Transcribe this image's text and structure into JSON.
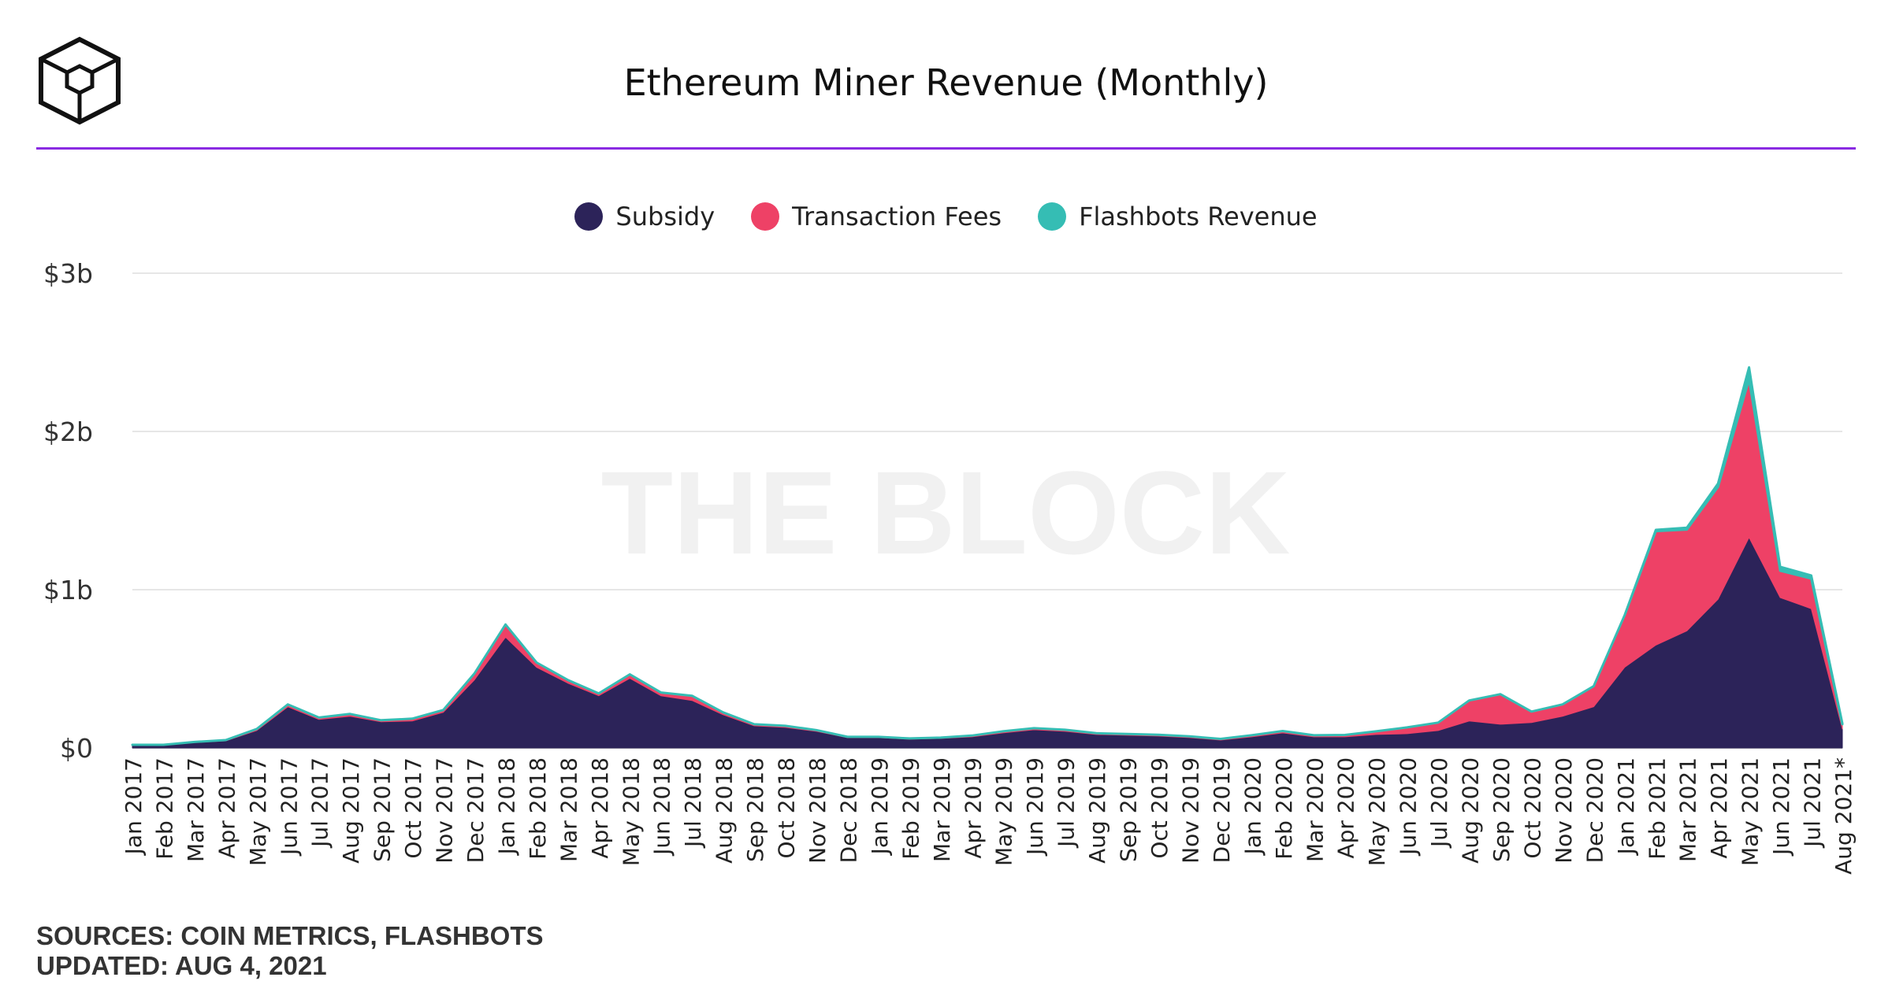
{
  "header": {
    "title": "Ethereum Miner Revenue (Monthly)"
  },
  "watermark": "THE BLOCK",
  "footer": {
    "sources": "SOURCES: COIN METRICS, FLASHBOTS",
    "updated": "UPDATED: AUG 4, 2021"
  },
  "colors": {
    "subsidy": "#2c2359",
    "fees": "#ee4166",
    "flashbots": "#35bdb4",
    "accent_rule": "#8a2be2"
  },
  "chart_data": {
    "type": "area",
    "stacked": true,
    "title": "Ethereum Miner Revenue (Monthly)",
    "xlabel": "",
    "ylabel": "",
    "ylim": [
      0,
      3000000000
    ],
    "yticks": [
      {
        "value": 0,
        "label": "$0"
      },
      {
        "value": 1000000000,
        "label": "$1b"
      },
      {
        "value": 2000000000,
        "label": "$2b"
      },
      {
        "value": 3000000000,
        "label": "$3b"
      }
    ],
    "grid": true,
    "legend_position": "top-center",
    "categories": [
      "Jan 2017",
      "Feb 2017",
      "Mar 2017",
      "Apr 2017",
      "May 2017",
      "Jun 2017",
      "Jul 2017",
      "Aug 2017",
      "Sep 2017",
      "Oct 2017",
      "Nov 2017",
      "Dec 2017",
      "Jan 2018",
      "Feb 2018",
      "Mar 2018",
      "Apr 2018",
      "May 2018",
      "Jun 2018",
      "Jul 2018",
      "Aug 2018",
      "Sep 2018",
      "Oct 2018",
      "Nov 2018",
      "Dec 2018",
      "Jan 2019",
      "Feb 2019",
      "Mar 2019",
      "Apr 2019",
      "May 2019",
      "Jun 2019",
      "Jul 2019",
      "Aug 2019",
      "Sep 2019",
      "Oct 2019",
      "Nov 2019",
      "Dec 2019",
      "Jan 2020",
      "Feb 2020",
      "Mar 2020",
      "Apr 2020",
      "May 2020",
      "Jun 2020",
      "Jul 2020",
      "Aug 2020",
      "Sep 2020",
      "Oct 2020",
      "Nov 2020",
      "Dec 2020",
      "Jan 2021",
      "Feb 2021",
      "Mar 2021",
      "Apr 2021",
      "May 2021",
      "Jun 2021",
      "Jul 2021",
      "Aug 2021*"
    ],
    "series": [
      {
        "name": "Subsidy",
        "color": "#2c2359",
        "values": [
          18000000,
          18000000,
          35000000,
          45000000,
          110000000,
          260000000,
          180000000,
          200000000,
          165000000,
          170000000,
          225000000,
          430000000,
          700000000,
          510000000,
          410000000,
          330000000,
          440000000,
          330000000,
          300000000,
          210000000,
          140000000,
          130000000,
          105000000,
          65000000,
          65000000,
          55000000,
          60000000,
          70000000,
          95000000,
          115000000,
          105000000,
          85000000,
          80000000,
          75000000,
          65000000,
          50000000,
          70000000,
          95000000,
          70000000,
          70000000,
          85000000,
          90000000,
          110000000,
          170000000,
          150000000,
          160000000,
          200000000,
          260000000,
          510000000,
          650000000,
          740000000,
          940000000,
          1330000000,
          950000000,
          880000000,
          120000000
        ]
      },
      {
        "name": "Transaction Fees",
        "color": "#ee4166",
        "values": [
          2000000,
          2000000,
          3000000,
          5000000,
          10000000,
          15000000,
          12000000,
          15000000,
          10000000,
          15000000,
          15000000,
          40000000,
          80000000,
          30000000,
          20000000,
          15000000,
          25000000,
          20000000,
          30000000,
          15000000,
          10000000,
          10000000,
          8000000,
          5000000,
          5000000,
          5000000,
          5000000,
          8000000,
          10000000,
          10000000,
          10000000,
          8000000,
          8000000,
          8000000,
          8000000,
          7000000,
          10000000,
          12000000,
          10000000,
          12000000,
          20000000,
          40000000,
          50000000,
          130000000,
          190000000,
          70000000,
          75000000,
          130000000,
          330000000,
          720000000,
          640000000,
          710000000,
          1000000000,
          170000000,
          190000000,
          30000000
        ]
      },
      {
        "name": "Flashbots Revenue",
        "color": "#35bdb4",
        "values": [
          0,
          0,
          0,
          0,
          0,
          0,
          0,
          0,
          0,
          0,
          0,
          0,
          0,
          0,
          0,
          0,
          0,
          0,
          0,
          0,
          0,
          0,
          0,
          0,
          0,
          0,
          0,
          0,
          0,
          0,
          0,
          0,
          0,
          0,
          0,
          0,
          0,
          0,
          0,
          0,
          0,
          0,
          0,
          0,
          0,
          0,
          0,
          0,
          0,
          8000000,
          12000000,
          20000000,
          75000000,
          25000000,
          20000000,
          5000000
        ]
      }
    ]
  }
}
